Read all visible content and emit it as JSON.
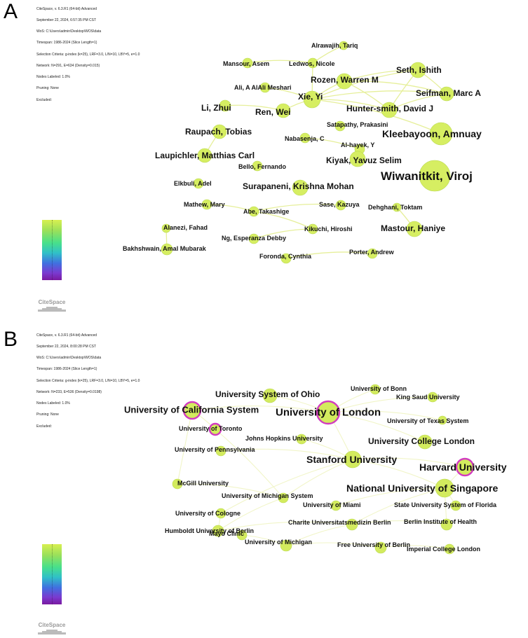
{
  "panels": [
    {
      "letter": "A",
      "meta_lines": [
        "CiteSpace, v. 6.3.R1 (64-bit) Advanced",
        "September 22, 2024, 6:57:35 PM CST",
        "WoS: C:\\Users\\admin\\Desktop\\WOS\\data",
        "Timespan: 1986-2024 (Slice Length=1)",
        "Selection Criteria: g-index (k=25), LRF=3.0, L/N=10, LBY=5, e=1.0",
        "Network: N=291, E=634 (Density=0.015)",
        "Nodes Labeled: 1.0%",
        "Pruning: None",
        "Excluded:"
      ],
      "logo": "CiteSpace",
      "nodes": [
        {
          "label": "Alrawajih, Tariq"
        },
        {
          "label": "Mansour, Asem"
        },
        {
          "label": "Ledwos, Nicole"
        },
        {
          "label": "Seth, Ishith"
        },
        {
          "label": "Rozen, Warren M"
        },
        {
          "label": "Ali, A AlAli Meshari"
        },
        {
          "label": "Xie, Yi"
        },
        {
          "label": "Seifman, Marc A"
        },
        {
          "label": "Li, Zhui"
        },
        {
          "label": "Ren, Wei"
        },
        {
          "label": "Hunter-smith, David J"
        },
        {
          "label": "Satapathy, Prakasini"
        },
        {
          "label": "Raupach, Tobias"
        },
        {
          "label": "Kleebayoon, Amnuay"
        },
        {
          "label": "Nabasenja, C"
        },
        {
          "label": "Al-hayek, Y"
        },
        {
          "label": "Laupichler, Matthias Carl"
        },
        {
          "label": "Kiyak, Yavuz Selim"
        },
        {
          "label": "Bello, Fernando"
        },
        {
          "label": "Wiwanitkit, Viroj"
        },
        {
          "label": "Elkbuli, Adel"
        },
        {
          "label": "Surapaneni, Krishna Mohan"
        },
        {
          "label": "Mathew, Mary"
        },
        {
          "label": "Sase, Kazuya"
        },
        {
          "label": "Dehghani, Toktam"
        },
        {
          "label": "Abe, Takashige"
        },
        {
          "label": "Alanezi, Fahad"
        },
        {
          "label": "Mastour, Haniye"
        },
        {
          "label": "Kikuchi, Hiroshi"
        },
        {
          "label": "Ng, Esperanza Debby"
        },
        {
          "label": "Bakhshwain, Amal Mubarak"
        },
        {
          "label": "Porter, Andrew"
        },
        {
          "label": "Foronda, Cynthia"
        }
      ]
    },
    {
      "letter": "B",
      "meta_lines": [
        "CiteSpace, v. 6.3.R1 (64-bit) Advanced",
        "September 22, 2024, 8:00:28 PM CST",
        "WoS: C:\\Users\\admin\\Desktop\\WOS\\data",
        "Timespan: 1986-2024 (Slice Length=1)",
        "Selection Criteria: g-index (k=25), LRF=3.0, L/N=10, LBY=5, e=1.0",
        "Network: N=233, E=536 (Density=0.0198)",
        "Nodes Labeled: 1.0%",
        "Pruning: None",
        "Excluded:"
      ],
      "logo": "CiteSpace",
      "nodes": [
        {
          "label": "University of Bonn"
        },
        {
          "label": "University System of Ohio"
        },
        {
          "label": "King Saud University"
        },
        {
          "label": "University of California System"
        },
        {
          "label": "University of London"
        },
        {
          "label": "University of Toronto"
        },
        {
          "label": "University of Texas System"
        },
        {
          "label": "Johns Hopkins University"
        },
        {
          "label": "University College London"
        },
        {
          "label": "University of Pennsylvania"
        },
        {
          "label": "Stanford University"
        },
        {
          "label": "McGill University"
        },
        {
          "label": "Harvard University"
        },
        {
          "label": "University of Michigan System"
        },
        {
          "label": "National University of Singapore"
        },
        {
          "label": "University of Cologne"
        },
        {
          "label": "University of Miami"
        },
        {
          "label": "State University System of Florida"
        },
        {
          "label": "Humboldt University of Berlin"
        },
        {
          "label": "Charite Universitatsmedizin Berlin"
        },
        {
          "label": "Berlin Institute of Health"
        },
        {
          "label": "Mayo Clinic"
        },
        {
          "label": "University of Michigan"
        },
        {
          "label": "Free University of Berlin"
        },
        {
          "label": "Imperial College London"
        }
      ]
    }
  ]
}
